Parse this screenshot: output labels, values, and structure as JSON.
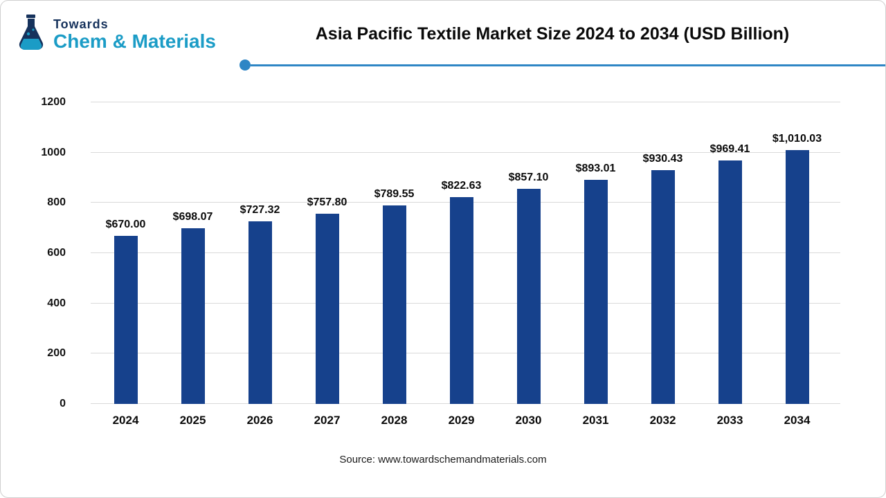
{
  "logo": {
    "line1": "Towards",
    "line2": "Chem & Materials"
  },
  "footer": {
    "source": "Source: www.towardschemandmaterials.com"
  },
  "chart_data": {
    "type": "bar",
    "title": "Asia Pacific Textile Market Size 2024 to 2034 (USD Billion)",
    "categories": [
      "2024",
      "2025",
      "2026",
      "2027",
      "2028",
      "2029",
      "2030",
      "2031",
      "2032",
      "2033",
      "2034"
    ],
    "values": [
      670.0,
      698.07,
      727.32,
      757.8,
      789.55,
      822.63,
      857.1,
      893.01,
      930.43,
      969.41,
      1010.03
    ],
    "labels": [
      "$670.00",
      "$698.07",
      "$727.32",
      "$757.80",
      "$789.55",
      "$822.63",
      "$857.10",
      "$893.01",
      "$930.43",
      "$969.41",
      "$1,010.03"
    ],
    "xlabel": "",
    "ylabel": "",
    "ylim": [
      0,
      1200
    ],
    "yticks": [
      0,
      200,
      400,
      600,
      800,
      1000,
      1200
    ],
    "grid": true,
    "legend": "none",
    "unit": "USD Billion"
  },
  "colors": {
    "bar": "#16418c",
    "accent_line": "#2e86c5",
    "logo_primary": "#16325c",
    "logo_secondary": "#1b9cc6",
    "grid": "#d9d9d9"
  }
}
